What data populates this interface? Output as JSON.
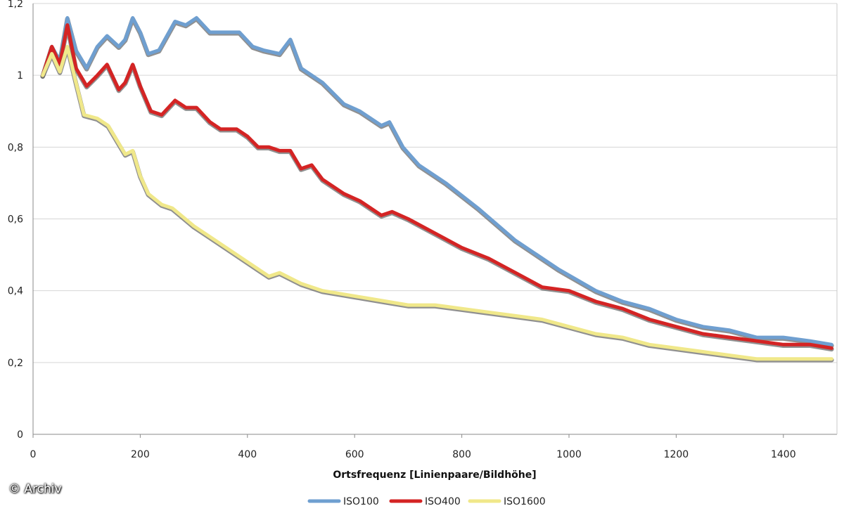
{
  "chart_data": {
    "type": "line",
    "title": "",
    "xlabel": "Ortsfrequenz [Linienpaare/Bildhöhe]",
    "ylabel": "",
    "xlim": [
      0,
      1500
    ],
    "ylim": [
      0,
      1.2
    ],
    "x_ticks": [
      "0",
      "200",
      "400",
      "600",
      "800",
      "1000",
      "1200",
      "1400"
    ],
    "y_ticks": [
      "0",
      "0,2",
      "0,4",
      "0,6",
      "0,8",
      "1",
      "1,2"
    ],
    "x_tick_values": [
      0,
      200,
      400,
      600,
      800,
      1000,
      1200,
      1400
    ],
    "y_tick_values": [
      0,
      0.2,
      0.4,
      0.6,
      0.8,
      1.0,
      1.2
    ],
    "grid": "horizontal",
    "legend_position": "bottom",
    "series": [
      {
        "name": "ISO100",
        "color": "#6f9fd0",
        "x": [
          18,
          35,
          50,
          64,
          80,
          100,
          120,
          138,
          160,
          172,
          186,
          200,
          215,
          235,
          265,
          285,
          305,
          330,
          360,
          385,
          410,
          430,
          460,
          480,
          500,
          540,
          580,
          610,
          650,
          665,
          690,
          720,
          770,
          830,
          900,
          980,
          1050,
          1100,
          1150,
          1200,
          1250,
          1300,
          1350,
          1400,
          1450,
          1490
        ],
        "y": [
          1.0,
          1.08,
          1.04,
          1.16,
          1.07,
          1.02,
          1.08,
          1.11,
          1.08,
          1.1,
          1.16,
          1.12,
          1.06,
          1.07,
          1.15,
          1.14,
          1.16,
          1.12,
          1.12,
          1.12,
          1.08,
          1.07,
          1.06,
          1.1,
          1.02,
          0.98,
          0.92,
          0.9,
          0.86,
          0.87,
          0.8,
          0.75,
          0.7,
          0.63,
          0.54,
          0.46,
          0.4,
          0.37,
          0.35,
          0.32,
          0.3,
          0.29,
          0.27,
          0.27,
          0.26,
          0.25
        ]
      },
      {
        "name": "ISO400",
        "color": "#d42424",
        "x": [
          18,
          35,
          50,
          64,
          80,
          100,
          120,
          138,
          160,
          172,
          186,
          200,
          220,
          240,
          265,
          285,
          305,
          330,
          350,
          380,
          400,
          420,
          440,
          460,
          480,
          500,
          520,
          540,
          580,
          610,
          650,
          670,
          700,
          750,
          800,
          850,
          900,
          950,
          1000,
          1050,
          1100,
          1150,
          1200,
          1250,
          1300,
          1350,
          1400,
          1450,
          1490
        ],
        "y": [
          1.0,
          1.08,
          1.03,
          1.14,
          1.02,
          0.97,
          1.0,
          1.03,
          0.96,
          0.98,
          1.03,
          0.97,
          0.9,
          0.89,
          0.93,
          0.91,
          0.91,
          0.87,
          0.85,
          0.85,
          0.83,
          0.8,
          0.8,
          0.79,
          0.79,
          0.74,
          0.75,
          0.71,
          0.67,
          0.65,
          0.61,
          0.62,
          0.6,
          0.56,
          0.52,
          0.49,
          0.45,
          0.41,
          0.4,
          0.37,
          0.35,
          0.32,
          0.3,
          0.28,
          0.27,
          0.26,
          0.25,
          0.25,
          0.24
        ]
      },
      {
        "name": "ISO1600",
        "color": "#f0e88a",
        "x": [
          18,
          35,
          50,
          64,
          80,
          95,
          120,
          140,
          160,
          172,
          186,
          200,
          215,
          240,
          260,
          300,
          340,
          380,
          420,
          440,
          460,
          500,
          540,
          580,
          620,
          660,
          700,
          750,
          800,
          850,
          900,
          950,
          1000,
          1050,
          1100,
          1150,
          1200,
          1250,
          1300,
          1350,
          1400,
          1450,
          1490
        ],
        "y": [
          1.0,
          1.06,
          1.01,
          1.08,
          0.98,
          0.89,
          0.88,
          0.86,
          0.81,
          0.78,
          0.79,
          0.72,
          0.67,
          0.64,
          0.63,
          0.58,
          0.54,
          0.5,
          0.46,
          0.44,
          0.45,
          0.42,
          0.4,
          0.39,
          0.38,
          0.37,
          0.36,
          0.36,
          0.35,
          0.34,
          0.33,
          0.32,
          0.3,
          0.28,
          0.27,
          0.25,
          0.24,
          0.23,
          0.22,
          0.21,
          0.21,
          0.21,
          0.21
        ]
      }
    ]
  },
  "credit": "© Archiv"
}
